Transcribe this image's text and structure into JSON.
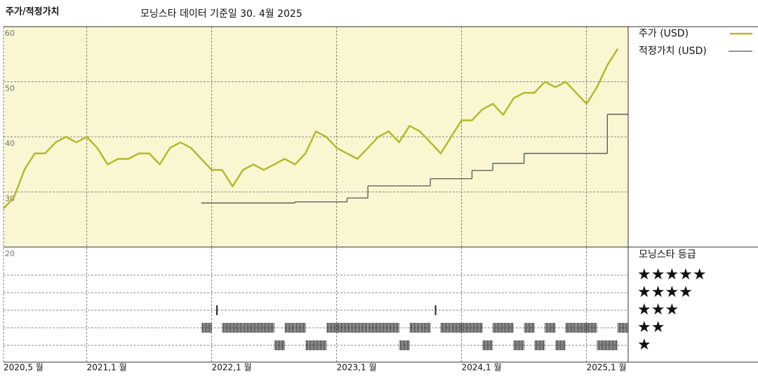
{
  "chart_data": {
    "type": "line",
    "title": "주가/적정가치",
    "subtitle": "모닝스타 데이터 기준일 30. 4월 2025",
    "xlim": [
      "2020-05",
      "2025-05"
    ],
    "xticks": [
      {
        "value": "2020-05",
        "label": "2020,5 월"
      },
      {
        "value": "2021-01",
        "label": "2021,1 월"
      },
      {
        "value": "2022-01",
        "label": "2022,1 월"
      },
      {
        "value": "2023-01",
        "label": "2023,1 월"
      },
      {
        "value": "2024-01",
        "label": "2024,1 월"
      },
      {
        "value": "2025-01",
        "label": "2025,1 월"
      }
    ],
    "ylim": [
      20,
      60
    ],
    "yticks": [
      20,
      30,
      40,
      50,
      60
    ],
    "grid": true,
    "background": "#faf6d2",
    "series": [
      {
        "name": "주가 (USD)",
        "color": "#b4b92a",
        "x": [
          "2020-05",
          "2020-06",
          "2020-07",
          "2020-08",
          "2020-09",
          "2020-10",
          "2020-11",
          "2020-12",
          "2021-01",
          "2021-02",
          "2021-03",
          "2021-04",
          "2021-05",
          "2021-06",
          "2021-07",
          "2021-08",
          "2021-09",
          "2021-10",
          "2021-11",
          "2021-12",
          "2022-01",
          "2022-02",
          "2022-03",
          "2022-04",
          "2022-05",
          "2022-06",
          "2022-07",
          "2022-08",
          "2022-09",
          "2022-10",
          "2022-11",
          "2022-12",
          "2023-01",
          "2023-02",
          "2023-03",
          "2023-04",
          "2023-05",
          "2023-06",
          "2023-07",
          "2023-08",
          "2023-09",
          "2023-10",
          "2023-11",
          "2023-12",
          "2024-01",
          "2024-02",
          "2024-03",
          "2024-04",
          "2024-05",
          "2024-06",
          "2024-07",
          "2024-08",
          "2024-09",
          "2024-10",
          "2024-11",
          "2024-12",
          "2025-01",
          "2025-02",
          "2025-03",
          "2025-04"
        ],
        "values": [
          27,
          29,
          34,
          37,
          37,
          39,
          40,
          39,
          40,
          38,
          35,
          36,
          36,
          37,
          37,
          35,
          38,
          39,
          38,
          36,
          34,
          34,
          31,
          34,
          35,
          34,
          35,
          36,
          35,
          37,
          41,
          40,
          38,
          37,
          36,
          38,
          40,
          41,
          39,
          42,
          41,
          39,
          37,
          40,
          43,
          43,
          45,
          46,
          44,
          47,
          48,
          48,
          50,
          49,
          50,
          48,
          46,
          49,
          53,
          56
        ]
      },
      {
        "name": "적정가치 (USD)",
        "color": "#555555",
        "drawstyle": "steps-post",
        "x": [
          "2021-12",
          "2022-09",
          "2023-02",
          "2023-04",
          "2023-10",
          "2024-02",
          "2024-04",
          "2024-07",
          "2025-03",
          "2025-05"
        ],
        "values": [
          28,
          28.2,
          28.9,
          31.1,
          32.4,
          33.9,
          35.2,
          37,
          44.1,
          44.1
        ]
      }
    ],
    "ratings": {
      "title": "모닝스타 등급",
      "ticks": [
        {
          "value": 5,
          "label": "★★★★★"
        },
        {
          "value": 4,
          "label": "★★★★"
        },
        {
          "value": 3,
          "label": "★★★"
        },
        {
          "value": 2,
          "label": "★★"
        },
        {
          "value": 1,
          "label": "★"
        }
      ],
      "x": [
        "2021-12",
        "2022-01",
        "2022-02",
        "2022-03",
        "2022-04",
        "2022-05",
        "2022-06",
        "2022-07",
        "2022-08",
        "2022-09",
        "2022-10",
        "2022-11",
        "2022-12",
        "2023-01",
        "2023-02",
        "2023-03",
        "2023-04",
        "2023-05",
        "2023-06",
        "2023-07",
        "2023-08",
        "2023-09",
        "2023-10",
        "2023-11",
        "2023-12",
        "2024-01",
        "2024-02",
        "2024-03",
        "2024-04",
        "2024-05",
        "2024-06",
        "2024-07",
        "2024-08",
        "2024-09",
        "2024-10",
        "2024-11",
        "2024-12",
        "2025-01",
        "2025-02",
        "2025-03",
        "2025-04"
      ],
      "values": [
        2,
        3,
        2,
        2,
        2,
        2,
        2,
        1,
        2,
        2,
        1,
        1,
        2,
        2,
        2,
        2,
        2,
        2,
        2,
        1,
        2,
        2,
        3,
        2,
        2,
        2,
        2,
        1,
        2,
        2,
        1,
        2,
        1,
        2,
        1,
        2,
        2,
        2,
        1,
        1,
        2
      ]
    }
  }
}
